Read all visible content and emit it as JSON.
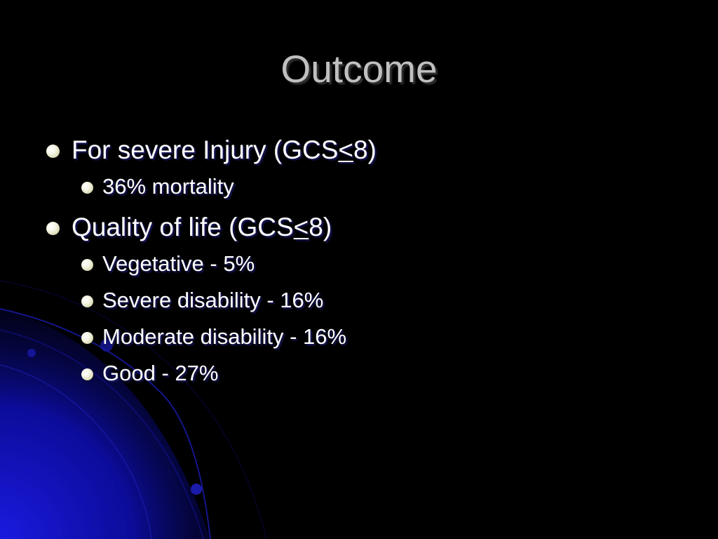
{
  "slide": {
    "title": "Outcome",
    "bullets": [
      {
        "level": 1,
        "pre": "For severe Injury (GCS",
        "sym": "<",
        "post": "8)"
      },
      {
        "level": 2,
        "text": "36% mortality"
      },
      {
        "level": 1,
        "pre": "Quality of life (GCS",
        "sym": "<",
        "post": "8)"
      },
      {
        "level": 2,
        "text": "Vegetative - 5%"
      },
      {
        "level": 2,
        "text": "Severe disability - 16%"
      },
      {
        "level": 2,
        "text": "Moderate disability - 16%"
      },
      {
        "level": 2,
        "text": "Good - 27%"
      }
    ]
  },
  "theme": {
    "background": "#000000",
    "accent_blue": "#1010c0",
    "title_color": "#c0c0c0",
    "text_color": "#ffffff",
    "bullet_color": "#f2f2dc",
    "bullet_icon": "bullet-dot-icon"
  }
}
